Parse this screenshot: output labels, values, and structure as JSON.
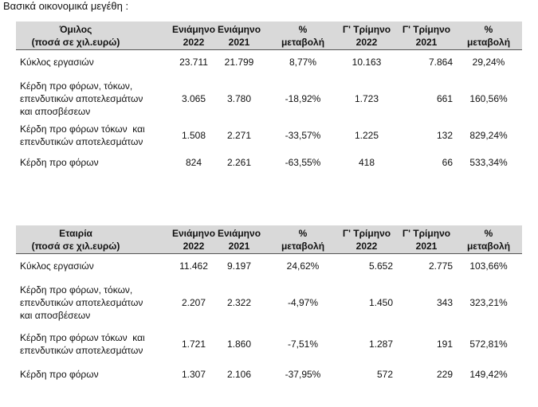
{
  "title": "Βασικά οικονομικά μεγέθη :",
  "tables": [
    {
      "header": [
        [
          "Όμιλος",
          "(ποσά σε χιλ.ευρώ)"
        ],
        [
          "Ενιάμηνο",
          "2022"
        ],
        [
          "Ενιάμηνο",
          "2021"
        ],
        [
          "%",
          "μεταβολή"
        ],
        [
          "Γ' Τρίμηνο",
          "2022"
        ],
        [
          "Γ' Τρίμηνο",
          "2021"
        ],
        [
          "%",
          "μεταβολή"
        ]
      ],
      "rows": [
        {
          "label": [
            "Κύκλος εργασιών"
          ],
          "cells": [
            "23.711",
            "21.799",
            "8,77%",
            "10.163",
            "7.864",
            "29,24%"
          ]
        },
        {
          "label": [
            "Κέρδη προ φόρων, τόκων,",
            "επενδυτικών αποτελεσμάτων",
            "και αποσβέσεων"
          ],
          "cells": [
            "3.065",
            "3.780",
            "-18,92%",
            "1.723",
            "661",
            "160,56%"
          ]
        },
        {
          "label": [
            "Κέρδη προ φόρων τόκων  και",
            "επενδυτικών αποτελεσμάτων"
          ],
          "cells": [
            "1.508",
            "2.271",
            "-33,57%",
            "1.225",
            "132",
            "829,24%"
          ]
        },
        {
          "label": [
            "Κέρδη προ φόρων"
          ],
          "cells": [
            "824",
            "2.261",
            "-63,55%",
            "418",
            "66",
            "533,34%"
          ]
        }
      ]
    },
    {
      "header": [
        [
          "Εταιρία",
          "(ποσά σε χιλ.ευρώ)"
        ],
        [
          "Ενιάμηνο",
          "2022"
        ],
        [
          "Ενιάμηνο",
          "2021"
        ],
        [
          "%",
          "μεταβολή"
        ],
        [
          "Γ' Τρίμηνο",
          "2022"
        ],
        [
          "Γ' Τρίμηνο",
          "2021"
        ],
        [
          "%",
          "μεταβολή"
        ]
      ],
      "rows": [
        {
          "label": [
            "Κύκλος εργασιών"
          ],
          "cells": [
            "11.462",
            "9.197",
            "24,62%",
            "5.652",
            "2.775",
            "103,66%"
          ]
        },
        {
          "label": [
            "Κέρδη προ φόρων, τόκων,",
            "επενδυτικών αποτελεσμάτων",
            "και αποσβέσεων"
          ],
          "cells": [
            "2.207",
            "2.322",
            "-4,97%",
            "1.450",
            "343",
            "323,21%"
          ]
        },
        {
          "label": [
            "Κέρδη προ φόρων τόκων  και",
            "επενδυτικών αποτελεσμάτων"
          ],
          "cells": [
            "1.721",
            "1.860",
            "-7,51%",
            "1.287",
            "191",
            "572,81%"
          ]
        },
        {
          "label": [
            "Κέρδη προ φόρων"
          ],
          "cells": [
            "1.307",
            "2.106",
            "-37,95%",
            "572",
            "229",
            "149,42%"
          ]
        }
      ]
    }
  ]
}
